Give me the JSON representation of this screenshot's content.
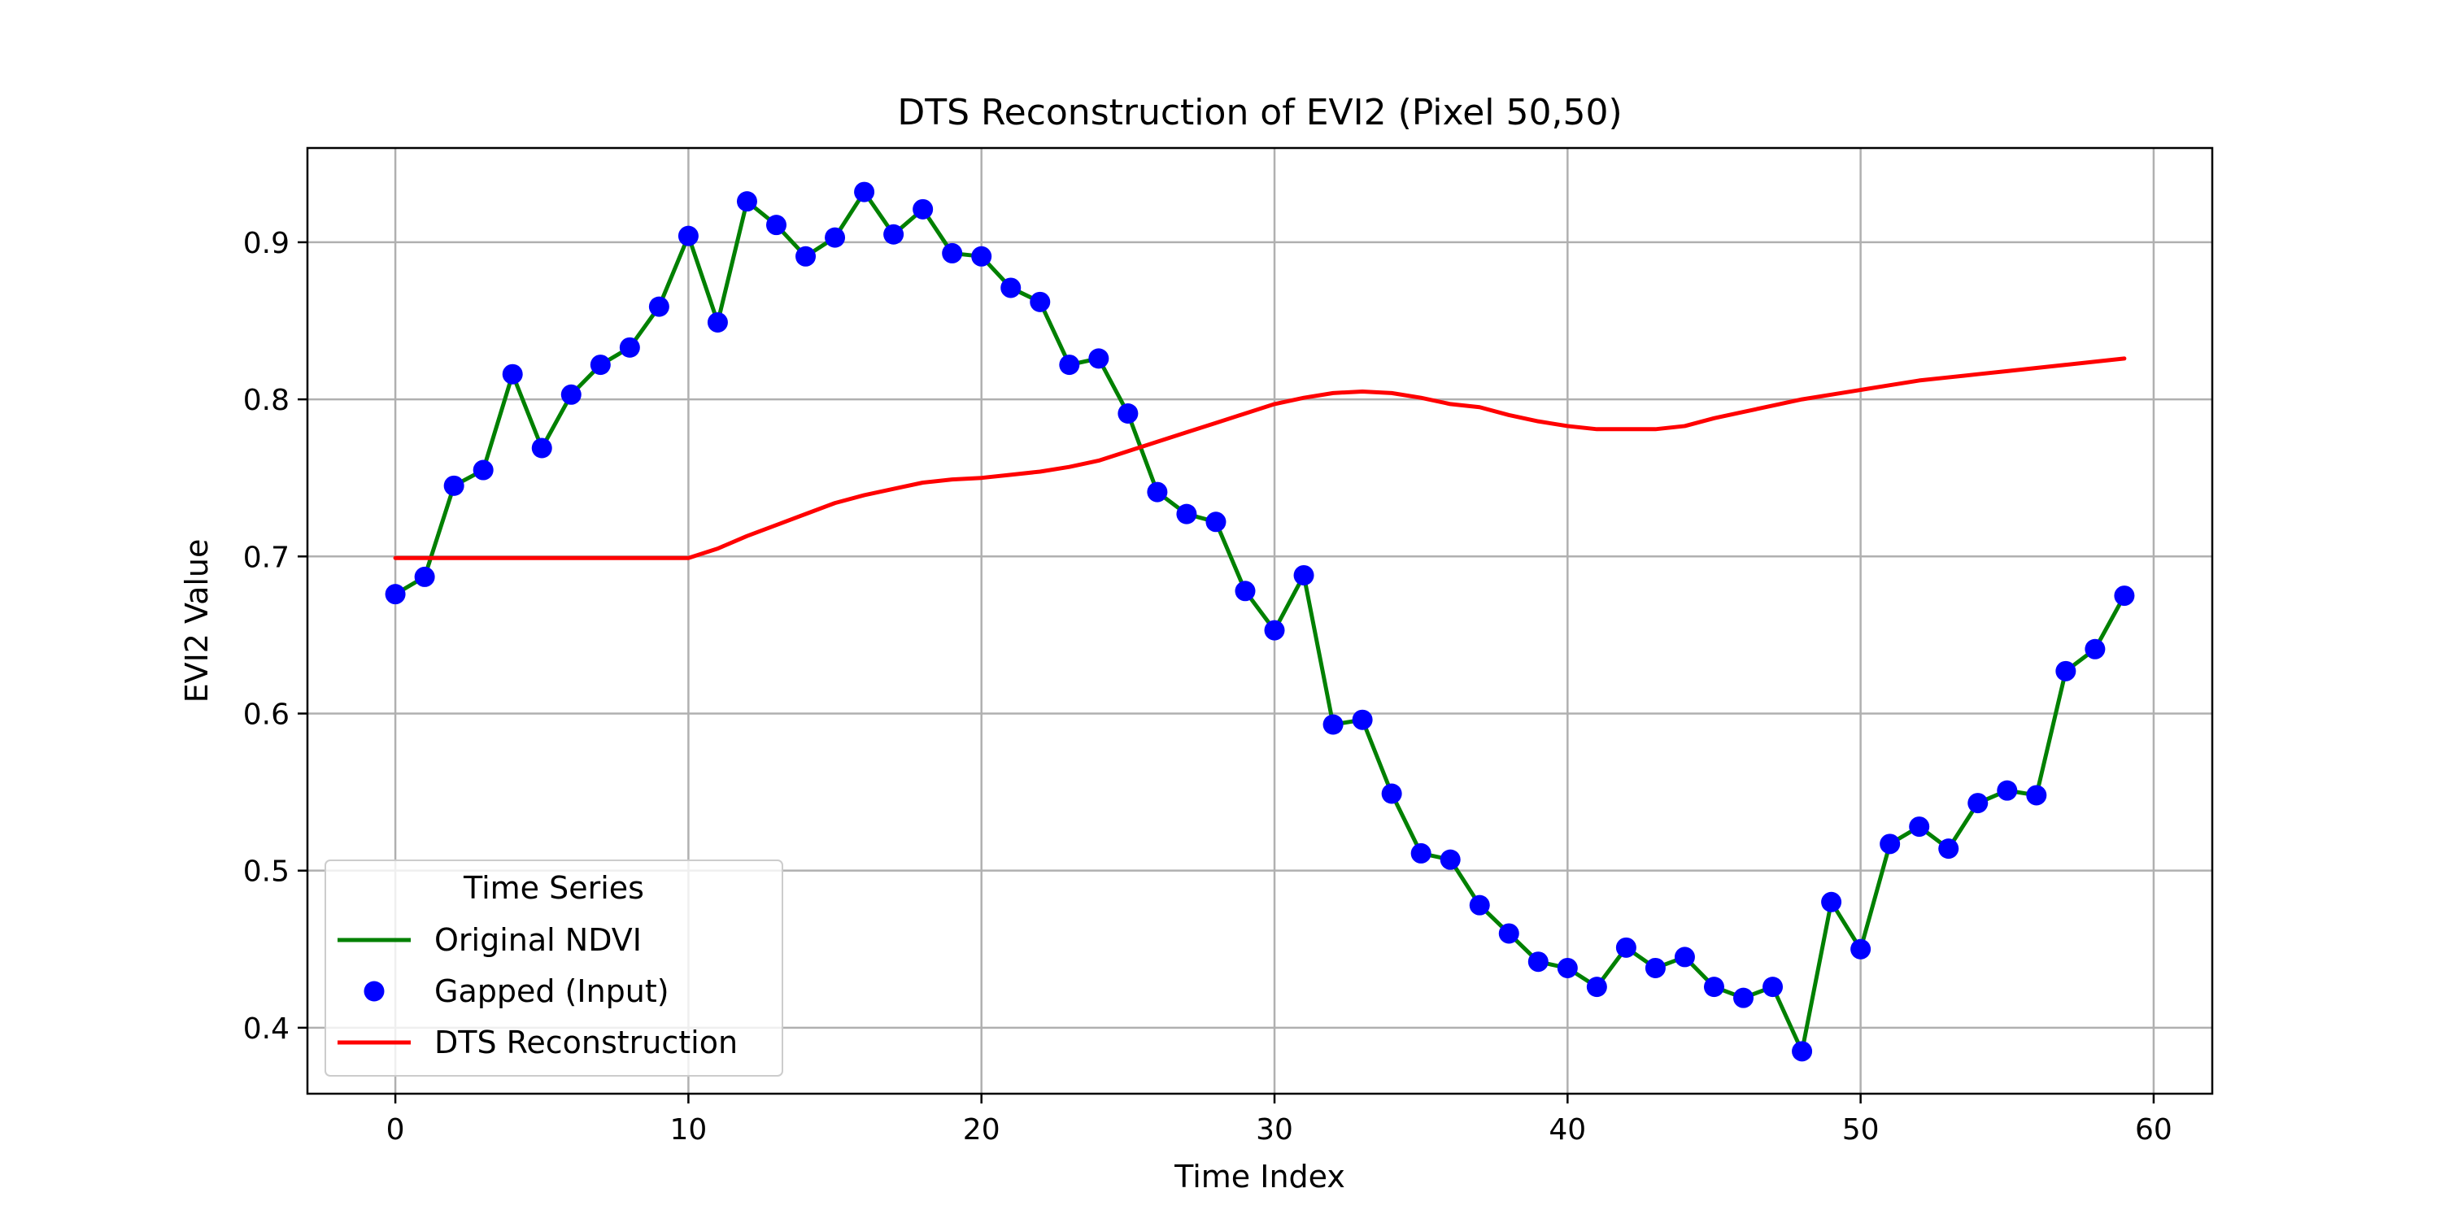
{
  "chart_data": {
    "type": "line",
    "title": "DTS Reconstruction of EVI2 (Pixel 50,50)",
    "xlabel": "Time Index",
    "ylabel": "EVI2 Value",
    "xlim": [
      -3,
      62
    ],
    "ylim": [
      0.358,
      0.96
    ],
    "xticks": [
      0,
      10,
      20,
      30,
      40,
      50,
      60
    ],
    "yticks": [
      0.4,
      0.5,
      0.6,
      0.7,
      0.8,
      0.9
    ],
    "grid": true,
    "legend": {
      "title": "Time Series",
      "placement": "bottom-left",
      "entries": [
        "Original NDVI",
        "Gapped (Input)",
        "DTS Reconstruction"
      ]
    },
    "x": [
      0,
      1,
      2,
      3,
      4,
      5,
      6,
      7,
      8,
      9,
      10,
      11,
      12,
      13,
      14,
      15,
      16,
      17,
      18,
      19,
      20,
      21,
      22,
      23,
      24,
      25,
      26,
      27,
      28,
      29,
      30,
      31,
      32,
      33,
      34,
      35,
      36,
      37,
      38,
      39,
      40,
      41,
      42,
      43,
      44,
      45,
      46,
      47,
      48,
      49,
      50,
      51,
      52,
      53,
      54,
      55,
      56,
      57,
      58,
      59
    ],
    "series": [
      {
        "name": "Original NDVI",
        "style": "line",
        "color": "#008000",
        "values": [
          0.676,
          0.687,
          0.745,
          0.755,
          0.816,
          0.769,
          0.803,
          0.822,
          0.833,
          0.859,
          0.904,
          0.849,
          0.926,
          0.911,
          0.891,
          0.903,
          0.932,
          0.905,
          0.921,
          0.893,
          0.891,
          0.871,
          0.862,
          0.822,
          0.826,
          0.791,
          0.741,
          0.727,
          0.722,
          0.678,
          0.653,
          0.688,
          0.593,
          0.596,
          0.549,
          0.511,
          0.507,
          0.478,
          0.46,
          0.442,
          0.438,
          0.426,
          0.451,
          0.438,
          0.445,
          0.426,
          0.419,
          0.426,
          0.385,
          0.48,
          0.45,
          0.517,
          0.528,
          0.514,
          0.543,
          0.551,
          0.548,
          0.627,
          0.641,
          0.675
        ]
      },
      {
        "name": "Gapped (Input)",
        "style": "markers",
        "color": "#0000ff",
        "values": [
          0.676,
          0.687,
          0.745,
          0.755,
          0.816,
          0.769,
          0.803,
          0.822,
          0.833,
          0.859,
          0.904,
          0.849,
          0.926,
          0.911,
          0.891,
          0.903,
          0.932,
          0.905,
          0.921,
          0.893,
          0.891,
          0.871,
          0.862,
          0.822,
          0.826,
          0.791,
          0.741,
          0.727,
          0.722,
          0.678,
          0.653,
          0.688,
          0.593,
          0.596,
          0.549,
          0.511,
          0.507,
          0.478,
          0.46,
          0.442,
          0.438,
          0.426,
          0.451,
          0.438,
          0.445,
          0.426,
          0.419,
          0.426,
          0.385,
          0.48,
          0.45,
          0.517,
          0.528,
          0.514,
          0.543,
          0.551,
          0.548,
          0.627,
          0.641,
          0.675
        ]
      },
      {
        "name": "DTS Reconstruction",
        "style": "line",
        "color": "#ff0000",
        "values": [
          0.699,
          0.699,
          0.699,
          0.699,
          0.699,
          0.699,
          0.699,
          0.699,
          0.699,
          0.699,
          0.699,
          0.705,
          0.713,
          0.72,
          0.727,
          0.734,
          0.739,
          0.743,
          0.747,
          0.749,
          0.75,
          0.752,
          0.754,
          0.757,
          0.761,
          0.767,
          0.773,
          0.779,
          0.785,
          0.791,
          0.797,
          0.801,
          0.804,
          0.805,
          0.804,
          0.801,
          0.797,
          0.795,
          0.79,
          0.786,
          0.783,
          0.781,
          0.781,
          0.781,
          0.783,
          0.788,
          0.792,
          0.796,
          0.8,
          0.803,
          0.806,
          0.809,
          0.812,
          0.814,
          0.816,
          0.818,
          0.82,
          0.822,
          0.824,
          0.826
        ]
      }
    ]
  }
}
